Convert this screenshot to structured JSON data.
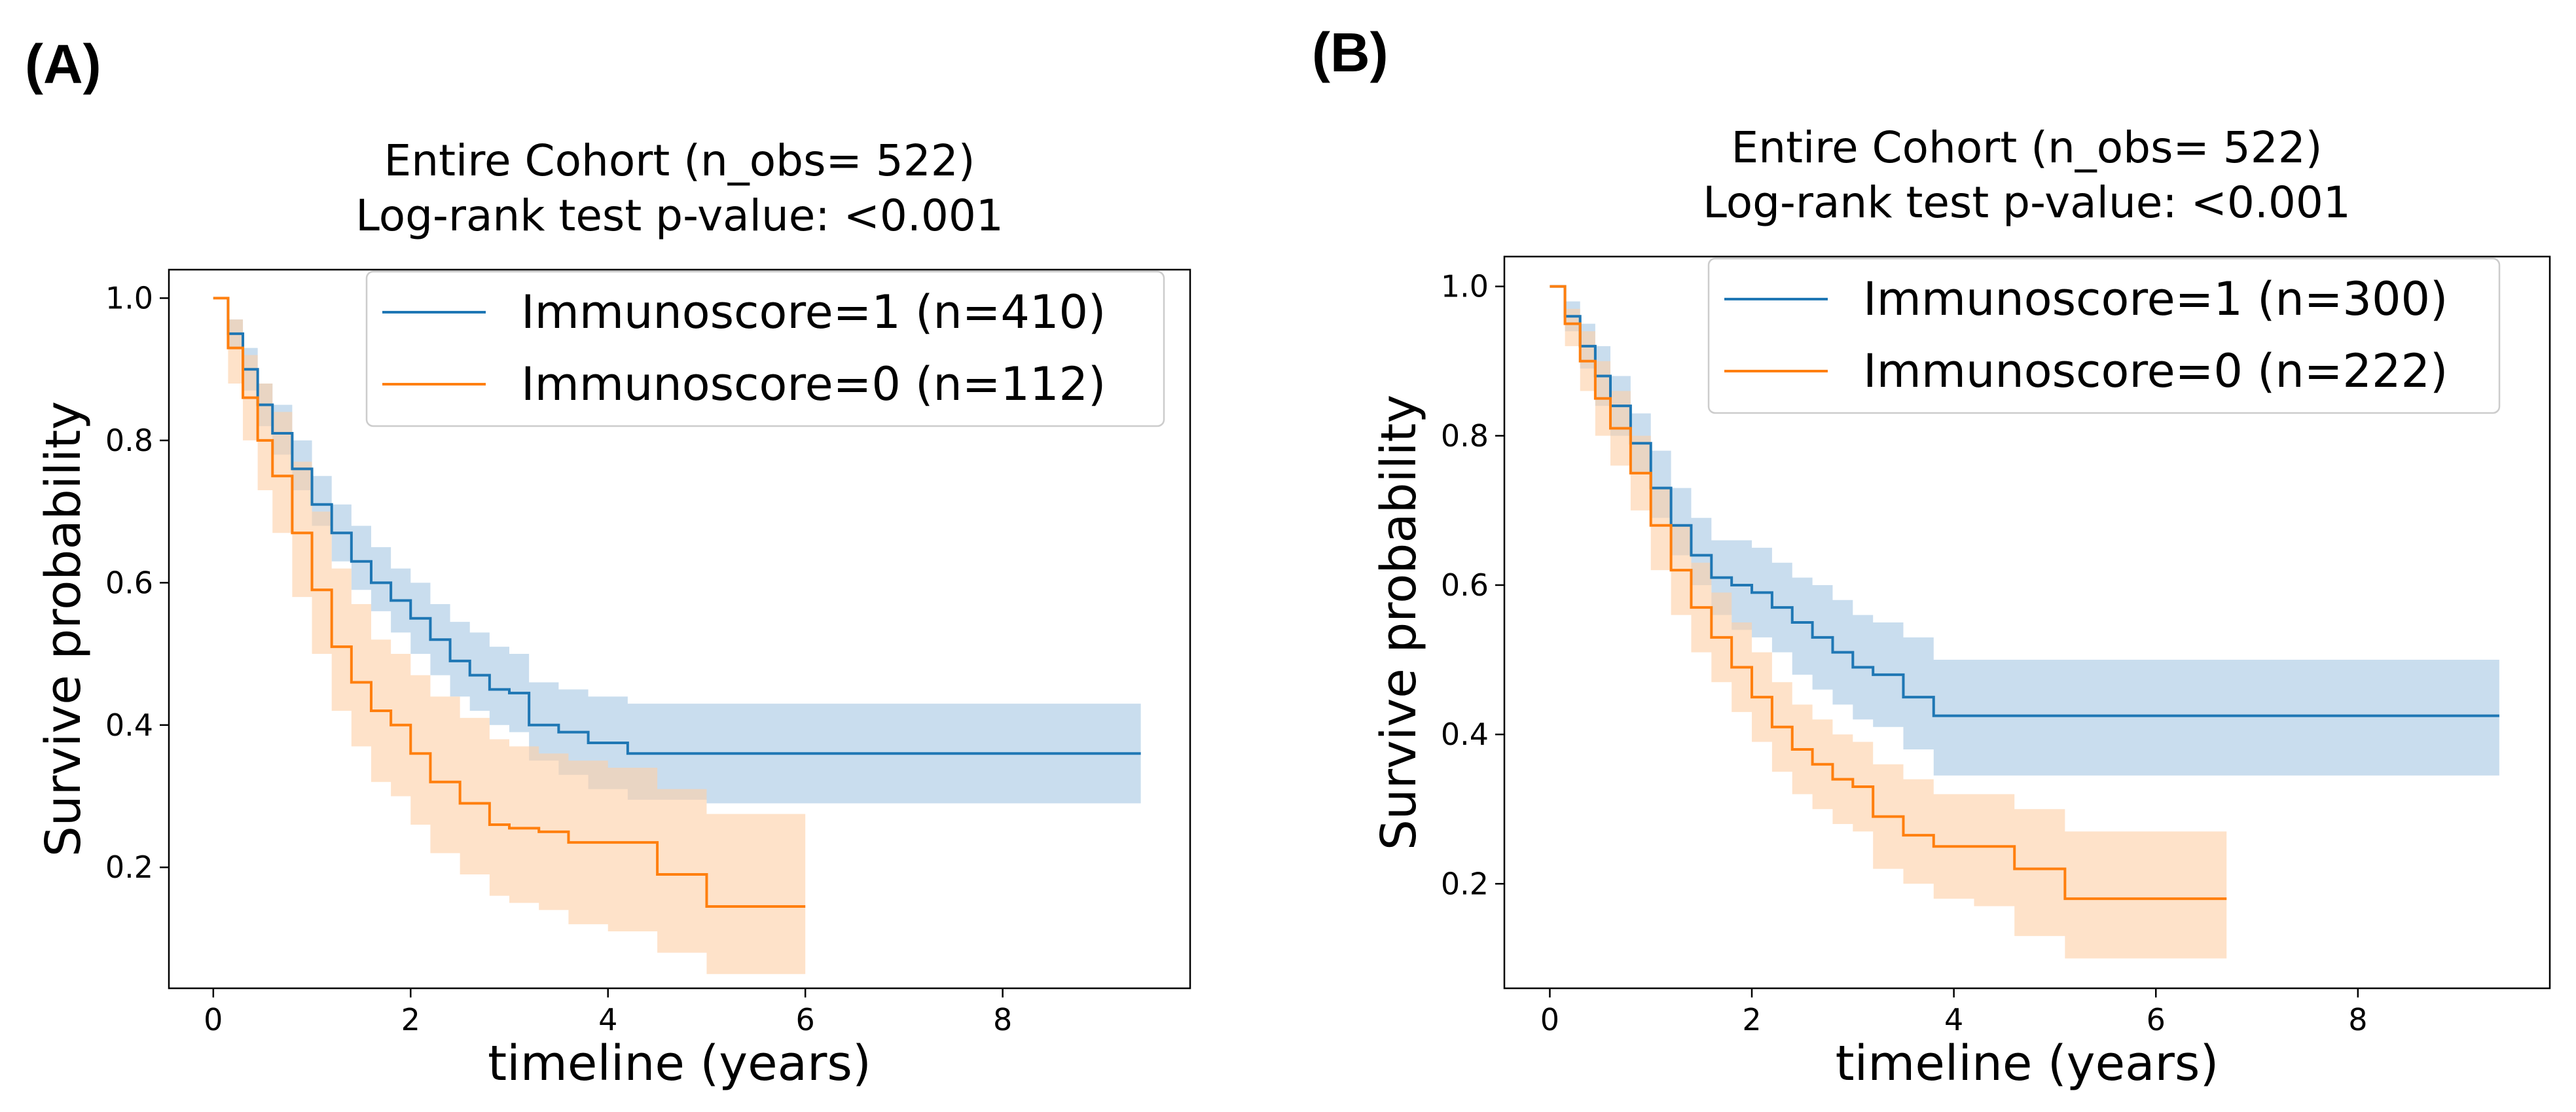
{
  "chart_data": [
    {
      "type": "line",
      "panel_label": "(A)",
      "title": "Entire Cohort (n_obs= 522)",
      "subtitle": "Log-rank test p-value: <0.001",
      "xlabel": "timeline (years)",
      "ylabel": "Survive probability",
      "xlim": [
        -0.45,
        9.9
      ],
      "ylim": [
        0.03,
        1.04
      ],
      "xticks": [
        "0",
        "2",
        "4",
        "6",
        "8"
      ],
      "xtick_values": [
        0,
        2,
        4,
        6,
        8
      ],
      "yticks": [
        "0.2",
        "0.4",
        "0.6",
        "0.8",
        "1.0"
      ],
      "ytick_values": [
        0.2,
        0.4,
        0.6,
        0.8,
        1.0
      ],
      "grid": false,
      "legend_position": "top-right",
      "series": [
        {
          "name": "Immunoscore=1 (n=410)",
          "color": "#1f77b4",
          "band_color": "#a8c8e3",
          "x": [
            0,
            0.15,
            0.3,
            0.45,
            0.6,
            0.8,
            1.0,
            1.2,
            1.4,
            1.6,
            1.8,
            2.0,
            2.2,
            2.4,
            2.6,
            2.8,
            3.0,
            3.2,
            3.5,
            3.8,
            4.2,
            5.0,
            6.0,
            7.0,
            8.0,
            9.4
          ],
          "y": [
            1.0,
            0.95,
            0.9,
            0.85,
            0.81,
            0.76,
            0.71,
            0.67,
            0.63,
            0.6,
            0.575,
            0.55,
            0.52,
            0.49,
            0.47,
            0.45,
            0.445,
            0.4,
            0.39,
            0.375,
            0.36,
            0.36,
            0.36,
            0.36,
            0.36,
            0.36
          ],
          "lower": [
            1.0,
            0.93,
            0.87,
            0.82,
            0.78,
            0.73,
            0.68,
            0.63,
            0.59,
            0.56,
            0.53,
            0.5,
            0.47,
            0.44,
            0.42,
            0.4,
            0.39,
            0.35,
            0.33,
            0.31,
            0.295,
            0.29,
            0.29,
            0.29,
            0.29,
            0.29
          ],
          "upper": [
            1.0,
            0.97,
            0.93,
            0.88,
            0.85,
            0.8,
            0.75,
            0.71,
            0.68,
            0.65,
            0.62,
            0.6,
            0.57,
            0.545,
            0.53,
            0.51,
            0.5,
            0.46,
            0.45,
            0.44,
            0.43,
            0.43,
            0.43,
            0.43,
            0.43,
            0.43
          ]
        },
        {
          "name": "Immunoscore=0 (n=112)",
          "color": "#ff7f0e",
          "band_color": "#fdd0a8",
          "x": [
            0,
            0.15,
            0.3,
            0.45,
            0.6,
            0.8,
            1.0,
            1.2,
            1.4,
            1.6,
            1.8,
            2.0,
            2.2,
            2.5,
            2.8,
            3.0,
            3.3,
            3.6,
            4.0,
            4.5,
            5.0,
            5.5,
            6.0
          ],
          "y": [
            1.0,
            0.93,
            0.86,
            0.8,
            0.75,
            0.67,
            0.59,
            0.51,
            0.46,
            0.42,
            0.4,
            0.36,
            0.32,
            0.29,
            0.26,
            0.255,
            0.25,
            0.235,
            0.235,
            0.19,
            0.145,
            0.145,
            0.145
          ],
          "lower": [
            1.0,
            0.88,
            0.8,
            0.73,
            0.67,
            0.58,
            0.5,
            0.42,
            0.37,
            0.32,
            0.3,
            0.26,
            0.22,
            0.19,
            0.16,
            0.15,
            0.14,
            0.12,
            0.11,
            0.08,
            0.05,
            0.05,
            0.05
          ],
          "upper": [
            1.0,
            0.97,
            0.92,
            0.88,
            0.84,
            0.77,
            0.7,
            0.62,
            0.57,
            0.52,
            0.5,
            0.47,
            0.44,
            0.41,
            0.38,
            0.37,
            0.36,
            0.35,
            0.34,
            0.31,
            0.275,
            0.275,
            0.275
          ]
        }
      ]
    },
    {
      "type": "line",
      "panel_label": "(B)",
      "title": "Entire Cohort (n_obs= 522)",
      "subtitle": "Log-rank test p-value: <0.001",
      "xlabel": "timeline (years)",
      "ylabel": "Survive probability",
      "xlim": [
        -0.45,
        9.9
      ],
      "ylim": [
        0.06,
        1.04
      ],
      "xticks": [
        "0",
        "2",
        "4",
        "6",
        "8"
      ],
      "xtick_values": [
        0,
        2,
        4,
        6,
        8
      ],
      "yticks": [
        "0.2",
        "0.4",
        "0.6",
        "0.8",
        "1.0"
      ],
      "ytick_values": [
        0.2,
        0.4,
        0.6,
        0.8,
        1.0
      ],
      "grid": false,
      "legend_position": "top-right",
      "series": [
        {
          "name": "Immunoscore=1 (n=300)",
          "color": "#1f77b4",
          "band_color": "#a8c8e3",
          "x": [
            0,
            0.15,
            0.3,
            0.45,
            0.6,
            0.8,
            1.0,
            1.2,
            1.4,
            1.6,
            1.8,
            2.0,
            2.2,
            2.4,
            2.6,
            2.8,
            3.0,
            3.2,
            3.5,
            3.8,
            4.5,
            5.5,
            6.5,
            7.5,
            8.5,
            9.4
          ],
          "y": [
            1.0,
            0.96,
            0.92,
            0.88,
            0.84,
            0.79,
            0.73,
            0.68,
            0.64,
            0.61,
            0.6,
            0.59,
            0.57,
            0.55,
            0.53,
            0.51,
            0.49,
            0.48,
            0.45,
            0.425,
            0.425,
            0.425,
            0.425,
            0.425,
            0.425,
            0.425
          ],
          "lower": [
            1.0,
            0.94,
            0.89,
            0.84,
            0.8,
            0.75,
            0.69,
            0.64,
            0.6,
            0.56,
            0.54,
            0.53,
            0.51,
            0.48,
            0.46,
            0.44,
            0.42,
            0.41,
            0.38,
            0.345,
            0.345,
            0.345,
            0.345,
            0.345,
            0.345,
            0.345
          ],
          "upper": [
            1.0,
            0.98,
            0.95,
            0.92,
            0.88,
            0.83,
            0.78,
            0.73,
            0.69,
            0.66,
            0.66,
            0.65,
            0.63,
            0.61,
            0.6,
            0.58,
            0.56,
            0.55,
            0.53,
            0.5,
            0.5,
            0.5,
            0.5,
            0.5,
            0.5,
            0.5
          ]
        },
        {
          "name": "Immunoscore=0 (n=222)",
          "color": "#ff7f0e",
          "band_color": "#fdd0a8",
          "x": [
            0,
            0.15,
            0.3,
            0.45,
            0.6,
            0.8,
            1.0,
            1.2,
            1.4,
            1.6,
            1.8,
            2.0,
            2.2,
            2.4,
            2.6,
            2.8,
            3.0,
            3.2,
            3.5,
            3.8,
            4.2,
            4.6,
            5.1,
            5.6,
            6.2,
            6.7
          ],
          "y": [
            1.0,
            0.95,
            0.9,
            0.85,
            0.81,
            0.75,
            0.68,
            0.62,
            0.57,
            0.53,
            0.49,
            0.45,
            0.41,
            0.38,
            0.36,
            0.34,
            0.33,
            0.29,
            0.265,
            0.25,
            0.25,
            0.22,
            0.18,
            0.18,
            0.18,
            0.18
          ],
          "lower": [
            1.0,
            0.92,
            0.86,
            0.8,
            0.76,
            0.7,
            0.62,
            0.56,
            0.51,
            0.47,
            0.43,
            0.39,
            0.35,
            0.32,
            0.3,
            0.28,
            0.27,
            0.22,
            0.2,
            0.18,
            0.17,
            0.13,
            0.1,
            0.1,
            0.1,
            0.1
          ],
          "upper": [
            1.0,
            0.97,
            0.94,
            0.9,
            0.86,
            0.8,
            0.73,
            0.68,
            0.63,
            0.59,
            0.55,
            0.51,
            0.47,
            0.44,
            0.42,
            0.4,
            0.39,
            0.36,
            0.34,
            0.32,
            0.32,
            0.3,
            0.27,
            0.27,
            0.27,
            0.27
          ]
        }
      ]
    }
  ]
}
